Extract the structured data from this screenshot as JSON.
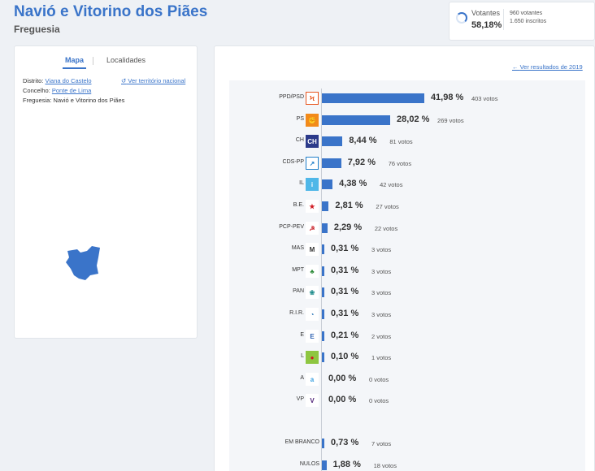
{
  "header": {
    "title": "Navió e Vitorino dos Piães",
    "subtitle": "Freguesia"
  },
  "turnout": {
    "label": "Votantes",
    "percent": "58,18%",
    "voters": "960 votantes",
    "registered": "1.650 inscritos",
    "fraction": 0.5818
  },
  "map_panel": {
    "tabs": [
      "Mapa",
      "Localidades"
    ],
    "active_tab": "Mapa",
    "nacional_link": "Ver território nacional",
    "district_label": "Distrito:",
    "district_value": "Viana do Castelo",
    "council_label": "Concelho:",
    "council_value": "Ponte de Lima",
    "parish_label": "Freguesia:",
    "parish_value": "Navió e Vitorino dos Piães",
    "map_color": "#3a74c9"
  },
  "results": {
    "previous_link": "Ver resultados de 2019",
    "bar_color": "#3a74c9",
    "parties": [
      {
        "name": "PPD/PSD",
        "pct": "41,98 %",
        "votes": "403 votos",
        "value": 41.98,
        "logo": "psd-logo"
      },
      {
        "name": "PS",
        "pct": "28,02 %",
        "votes": "269 votos",
        "value": 28.02,
        "logo": "ps-logo"
      },
      {
        "name": "CH",
        "pct": "8,44 %",
        "votes": "81 votos",
        "value": 8.44,
        "logo": "ch-logo"
      },
      {
        "name": "CDS-PP",
        "pct": "7,92 %",
        "votes": "76 votos",
        "value": 7.92,
        "logo": "cds-logo"
      },
      {
        "name": "IL",
        "pct": "4,38 %",
        "votes": "42 votos",
        "value": 4.38,
        "logo": "il-logo"
      },
      {
        "name": "B.E.",
        "pct": "2,81 %",
        "votes": "27 votos",
        "value": 2.81,
        "logo": "be-logo"
      },
      {
        "name": "PCP-PEV",
        "pct": "2,29 %",
        "votes": "22 votos",
        "value": 2.29,
        "logo": "cdu-logo"
      },
      {
        "name": "MAS",
        "pct": "0,31 %",
        "votes": "3 votos",
        "value": 0.31,
        "logo": "mas-logo"
      },
      {
        "name": "MPT",
        "pct": "0,31 %",
        "votes": "3 votos",
        "value": 0.31,
        "logo": "mpt-logo"
      },
      {
        "name": "PAN",
        "pct": "0,31 %",
        "votes": "3 votos",
        "value": 0.31,
        "logo": "pan-logo"
      },
      {
        "name": "R.I.R.",
        "pct": "0,31 %",
        "votes": "3 votos",
        "value": 0.31,
        "logo": "rir-logo"
      },
      {
        "name": "E",
        "pct": "0,21 %",
        "votes": "2 votos",
        "value": 0.21,
        "logo": "ergue-te-logo"
      },
      {
        "name": "L",
        "pct": "0,10 %",
        "votes": "1 votos",
        "value": 0.1,
        "logo": "livre-logo"
      },
      {
        "name": "A",
        "pct": "0,00 %",
        "votes": "0 votos",
        "value": 0.0,
        "logo": "alianca-logo"
      },
      {
        "name": "VP",
        "pct": "0,00 %",
        "votes": "0 votos",
        "value": 0.0,
        "logo": "volt-logo"
      }
    ],
    "others": [
      {
        "name": "EM BRANCO",
        "pct": "0,73 %",
        "votes": "7 votos",
        "value": 0.73
      },
      {
        "name": "NULOS",
        "pct": "1,88 %",
        "votes": "18 votos",
        "value": 1.88
      }
    ]
  }
}
